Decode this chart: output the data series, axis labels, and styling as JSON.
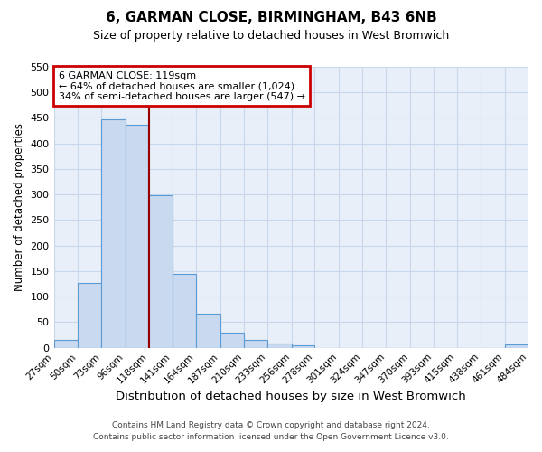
{
  "title": "6, GARMAN CLOSE, BIRMINGHAM, B43 6NB",
  "subtitle": "Size of property relative to detached houses in West Bromwich",
  "xlabel": "Distribution of detached houses by size in West Bromwich",
  "ylabel": "Number of detached properties",
  "bin_edges": [
    27,
    50,
    73,
    96,
    118,
    141,
    164,
    187,
    210,
    233,
    256,
    278,
    301,
    324,
    347,
    370,
    393,
    415,
    438,
    461,
    484
  ],
  "bar_heights": [
    15,
    127,
    447,
    437,
    298,
    145,
    67,
    29,
    16,
    8,
    5,
    0,
    0,
    0,
    0,
    0,
    0,
    0,
    0,
    6
  ],
  "bar_color": "#c8d9f0",
  "bar_edgecolor": "#5b9bd5",
  "property_size": 119,
  "vline_color": "#990000",
  "ylim": [
    0,
    550
  ],
  "yticks": [
    0,
    50,
    100,
    150,
    200,
    250,
    300,
    350,
    400,
    450,
    500,
    550
  ],
  "xtick_labels": [
    "27sqm",
    "50sqm",
    "73sqm",
    "96sqm",
    "118sqm",
    "141sqm",
    "164sqm",
    "187sqm",
    "210sqm",
    "233sqm",
    "256sqm",
    "278sqm",
    "301sqm",
    "324sqm",
    "347sqm",
    "370sqm",
    "393sqm",
    "415sqm",
    "438sqm",
    "461sqm",
    "484sqm"
  ],
  "annotation_line1": "6 GARMAN CLOSE: 119sqm",
  "annotation_line2": "← 64% of detached houses are smaller (1,024)",
  "annotation_line3": "34% of semi-detached houses are larger (547) →",
  "annotation_box_edgecolor": "#cc0000",
  "footer_line1": "Contains HM Land Registry data © Crown copyright and database right 2024.",
  "footer_line2": "Contains public sector information licensed under the Open Government Licence v3.0.",
  "grid_color": "#c8d8ec",
  "background_color": "#e8eff8"
}
